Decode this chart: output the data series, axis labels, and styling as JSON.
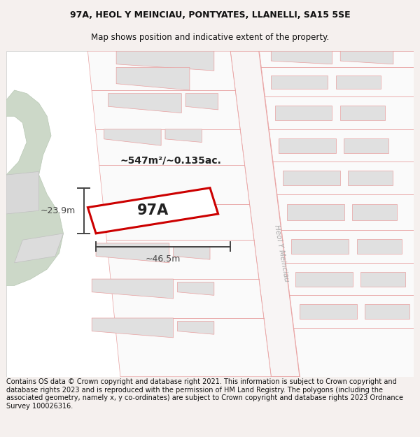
{
  "title_line1": "97A, HEOL Y MEINCIAU, PONTYATES, LLANELLI, SA15 5SE",
  "title_line2": "Map shows position and indicative extent of the property.",
  "footer_text": "Contains OS data © Crown copyright and database right 2021. This information is subject to Crown copyright and database rights 2023 and is reproduced with the permission of HM Land Registry. The polygons (including the associated geometry, namely x, y co-ordinates) are subject to Crown copyright and database rights 2023 Ordnance Survey 100026316.",
  "area_label": "~547m²/~0.135ac.",
  "plot_label": "97A",
  "dim_width": "~46.5m",
  "dim_height": "~23.9m",
  "road_label": "Heol Y Meinciau",
  "title_fontsize": 9.0,
  "subtitle_fontsize": 8.5,
  "footer_fontsize": 7.0,
  "map_bg": "#ffffff",
  "fig_bg": "#f5f0ee",
  "plot_fill": "#ffffff",
  "plot_edge": "#cc0000",
  "nbr_fill": "#e0e0e0",
  "nbr_edge": "#e8a0a0",
  "road_edge": "#e8a0a0",
  "green_fill": "#ccd8c8",
  "green_edge": "#b8c8b4",
  "dim_color": "#444444",
  "label_color": "#222222",
  "road_label_color": "#aaaaaa"
}
